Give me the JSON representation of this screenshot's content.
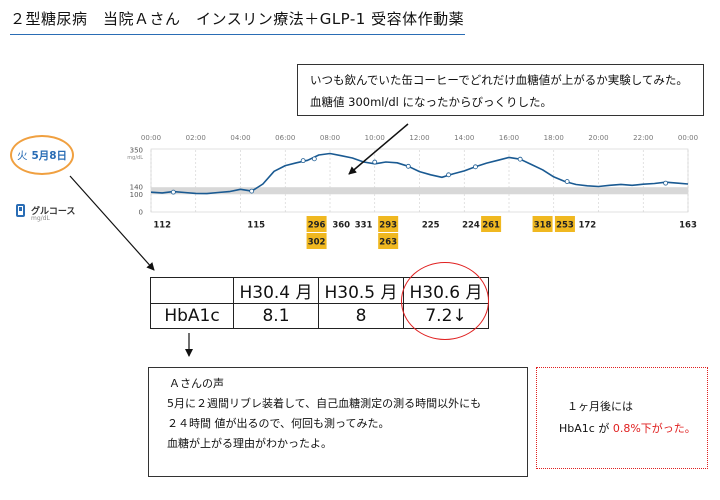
{
  "title": "２型糖尿病　当院Ａさん　インスリン療法＋GLP-1 受容体作動薬",
  "callout": {
    "line1": "いつも飲んでいた缶コーヒーでどれだけ血糖値が上がるか実験してみた。",
    "line2": "血糖値 300ml/dl になったからびっくりした。"
  },
  "date": {
    "dow": "火",
    "date": "5月8日"
  },
  "glucose": {
    "label": "グルコース",
    "unit": "mg/dL"
  },
  "chart_data": {
    "type": "line",
    "x_unit": "hour",
    "ylabel": "mg/dL",
    "y_axis_unit_label": "mg/dL",
    "x_tick_labels": [
      "00:00",
      "02:00",
      "04:00",
      "06:00",
      "08:00",
      "10:00",
      "12:00",
      "14:00",
      "16:00",
      "18:00",
      "20:00",
      "22:00",
      "00:00"
    ],
    "y_ticks": [
      350,
      140,
      100,
      0
    ],
    "y_tick_labels": [
      "350",
      "140",
      "100",
      "0"
    ],
    "ylim": [
      0,
      350
    ],
    "target_range": [
      100,
      140
    ],
    "grid": true,
    "series": [
      {
        "x": [
          0,
          0.5,
          1,
          1.5,
          2,
          2.5,
          3,
          3.5,
          4,
          4.5,
          5,
          5.5,
          6,
          6.5,
          7,
          7.5,
          8,
          8.5,
          9,
          9.5,
          10,
          10.5,
          11,
          11.5,
          12,
          12.5,
          13,
          13.5,
          14,
          14.5,
          15,
          15.5,
          16,
          16.5,
          17,
          17.5,
          18,
          18.5,
          19,
          19.5,
          20,
          20.5,
          21,
          21.5,
          22,
          22.5,
          23,
          23.5,
          24
        ],
        "y": [
          112,
          108,
          115,
          110,
          105,
          104,
          110,
          115,
          128,
          118,
          158,
          230,
          262,
          278,
          292,
          322,
          330,
          318,
          305,
          282,
          272,
          282,
          278,
          258,
          228,
          210,
          196,
          215,
          232,
          255,
          276,
          292,
          308,
          298,
          268,
          238,
          198,
          172,
          155,
          148,
          144,
          151,
          156,
          151,
          157,
          161,
          168,
          163,
          158
        ]
      }
    ],
    "markers": [
      {
        "x": 1.0,
        "y": 112
      },
      {
        "x": 4.5,
        "y": 118
      },
      {
        "x": 6.8,
        "y": 290
      },
      {
        "x": 7.3,
        "y": 300
      },
      {
        "x": 10.0,
        "y": 282
      },
      {
        "x": 11.5,
        "y": 258
      },
      {
        "x": 13.3,
        "y": 210
      },
      {
        "x": 14.5,
        "y": 255
      },
      {
        "x": 16.5,
        "y": 298
      },
      {
        "x": 18.6,
        "y": 172
      },
      {
        "x": 23.0,
        "y": 163
      }
    ],
    "readings": [
      {
        "x": 0.5,
        "value": "112",
        "highlight": false,
        "row": 0
      },
      {
        "x": 4.7,
        "value": "115",
        "highlight": false,
        "row": 0
      },
      {
        "x": 7.4,
        "value": "296",
        "highlight": true,
        "row": 0
      },
      {
        "x": 7.4,
        "value": "302",
        "highlight": true,
        "row": 1
      },
      {
        "x": 8.5,
        "value": "360",
        "highlight": false,
        "row": 0
      },
      {
        "x": 9.5,
        "value": "331",
        "highlight": false,
        "row": 0
      },
      {
        "x": 10.6,
        "value": "293",
        "highlight": true,
        "row": 0
      },
      {
        "x": 10.6,
        "value": "263",
        "highlight": true,
        "row": 1
      },
      {
        "x": 12.5,
        "value": "225",
        "highlight": false,
        "row": 0
      },
      {
        "x": 14.3,
        "value": "224",
        "highlight": false,
        "row": 0
      },
      {
        "x": 15.2,
        "value": "261",
        "highlight": true,
        "row": 0
      },
      {
        "x": 17.5,
        "value": "318",
        "highlight": true,
        "row": 0
      },
      {
        "x": 18.5,
        "value": "253",
        "highlight": true,
        "row": 0
      },
      {
        "x": 19.5,
        "value": "172",
        "highlight": false,
        "row": 0
      },
      {
        "x": 24.0,
        "value": "163",
        "highlight": false,
        "row": 0
      }
    ],
    "line_color": "#1a5a92",
    "highlight_color": "#f0b820"
  },
  "hba1c": {
    "headers": [
      "",
      "H30.4 月",
      "H30.5 月",
      "H30.6 月"
    ],
    "row_label": "HbA1c",
    "values": [
      "8.1",
      "8",
      "7.2↓"
    ]
  },
  "voice": {
    "title": "Ａさんの声",
    "line1": "5月に２週間リブレ装着して、自己血糖測定の測る時間以外にも",
    "line2": "２４時間 値が出るので、何回も測ってみた。",
    "line3": "血糖が上がる理由がわかったよ。"
  },
  "result": {
    "line1": "１ヶ月後には",
    "line2_prefix": "HbA1c が ",
    "line2_red": "0.8%下がった。"
  }
}
